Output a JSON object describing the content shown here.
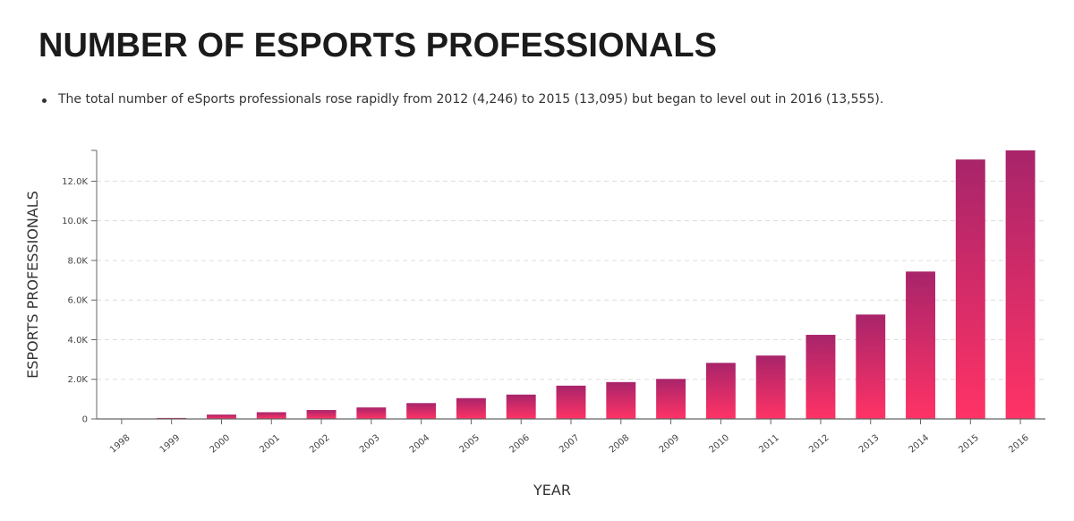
{
  "page": {
    "title": "NUMBER OF ESPORTS PROFESSIONALS",
    "summary": "The total number of eSports professionals rose rapidly from 2012 (4,246) to 2015 (13,095) but began to level out in 2016 (13,555)."
  },
  "colors": {
    "bar_top": "#a8246a",
    "bar_bottom": "#ff3366",
    "axis": "#666666",
    "grid": "#dddddd"
  },
  "chart_data": {
    "type": "bar",
    "categories": [
      "1998",
      "1999",
      "2000",
      "2001",
      "2002",
      "2003",
      "2004",
      "2005",
      "2006",
      "2007",
      "2008",
      "2009",
      "2010",
      "2011",
      "2012",
      "2013",
      "2014",
      "2015",
      "2016"
    ],
    "values": [
      20,
      50,
      220,
      340,
      450,
      580,
      800,
      1050,
      1230,
      1680,
      1860,
      2020,
      2830,
      3200,
      4246,
      5270,
      7440,
      13095,
      13555
    ],
    "title": "",
    "xlabel": "YEAR",
    "ylabel": "ESPORTS PROFESSIONALS",
    "ylim": [
      0,
      13555
    ],
    "yticks": [
      0,
      2000,
      4000,
      6000,
      8000,
      10000,
      12000
    ],
    "ytick_labels": [
      "0",
      "2.0K",
      "4.0K",
      "6.0K",
      "8.0K",
      "10.0K",
      "12.0K"
    ],
    "grid": true,
    "legend": "none"
  }
}
